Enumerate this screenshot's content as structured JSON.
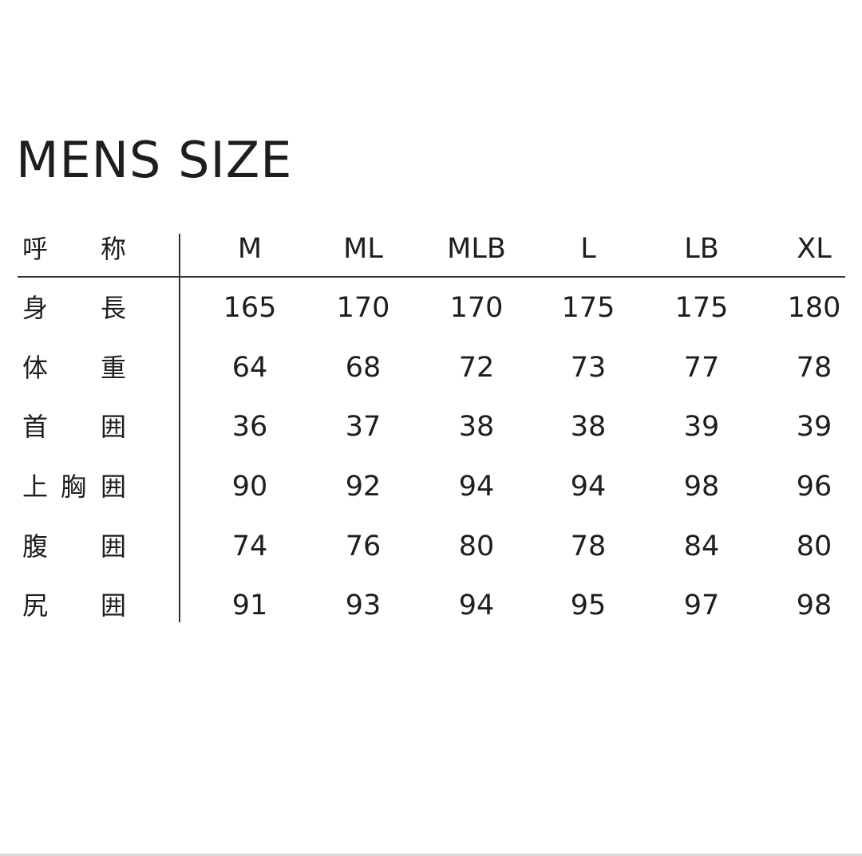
{
  "title": "MENS SIZE",
  "table": {
    "header_label": [
      "呼",
      "称"
    ],
    "columns": [
      "M",
      "ML",
      "MLB",
      "L",
      "LB",
      "XL"
    ],
    "rows": [
      {
        "label": [
          "身",
          "長"
        ],
        "values": [
          "165",
          "170",
          "170",
          "175",
          "175",
          "180"
        ]
      },
      {
        "label": [
          "体",
          "重"
        ],
        "values": [
          "64",
          "68",
          "72",
          "73",
          "77",
          "78"
        ]
      },
      {
        "label": [
          "首",
          "囲"
        ],
        "values": [
          "36",
          "37",
          "38",
          "38",
          "39",
          "39"
        ]
      },
      {
        "label": [
          "上",
          "胸",
          "囲"
        ],
        "values": [
          "90",
          "92",
          "94",
          "94",
          "98",
          "96"
        ]
      },
      {
        "label": [
          "腹",
          "囲"
        ],
        "values": [
          "74",
          "76",
          "80",
          "78",
          "84",
          "80"
        ]
      },
      {
        "label": [
          "尻",
          "囲"
        ],
        "values": [
          "91",
          "93",
          "94",
          "95",
          "97",
          "98"
        ]
      }
    ]
  }
}
